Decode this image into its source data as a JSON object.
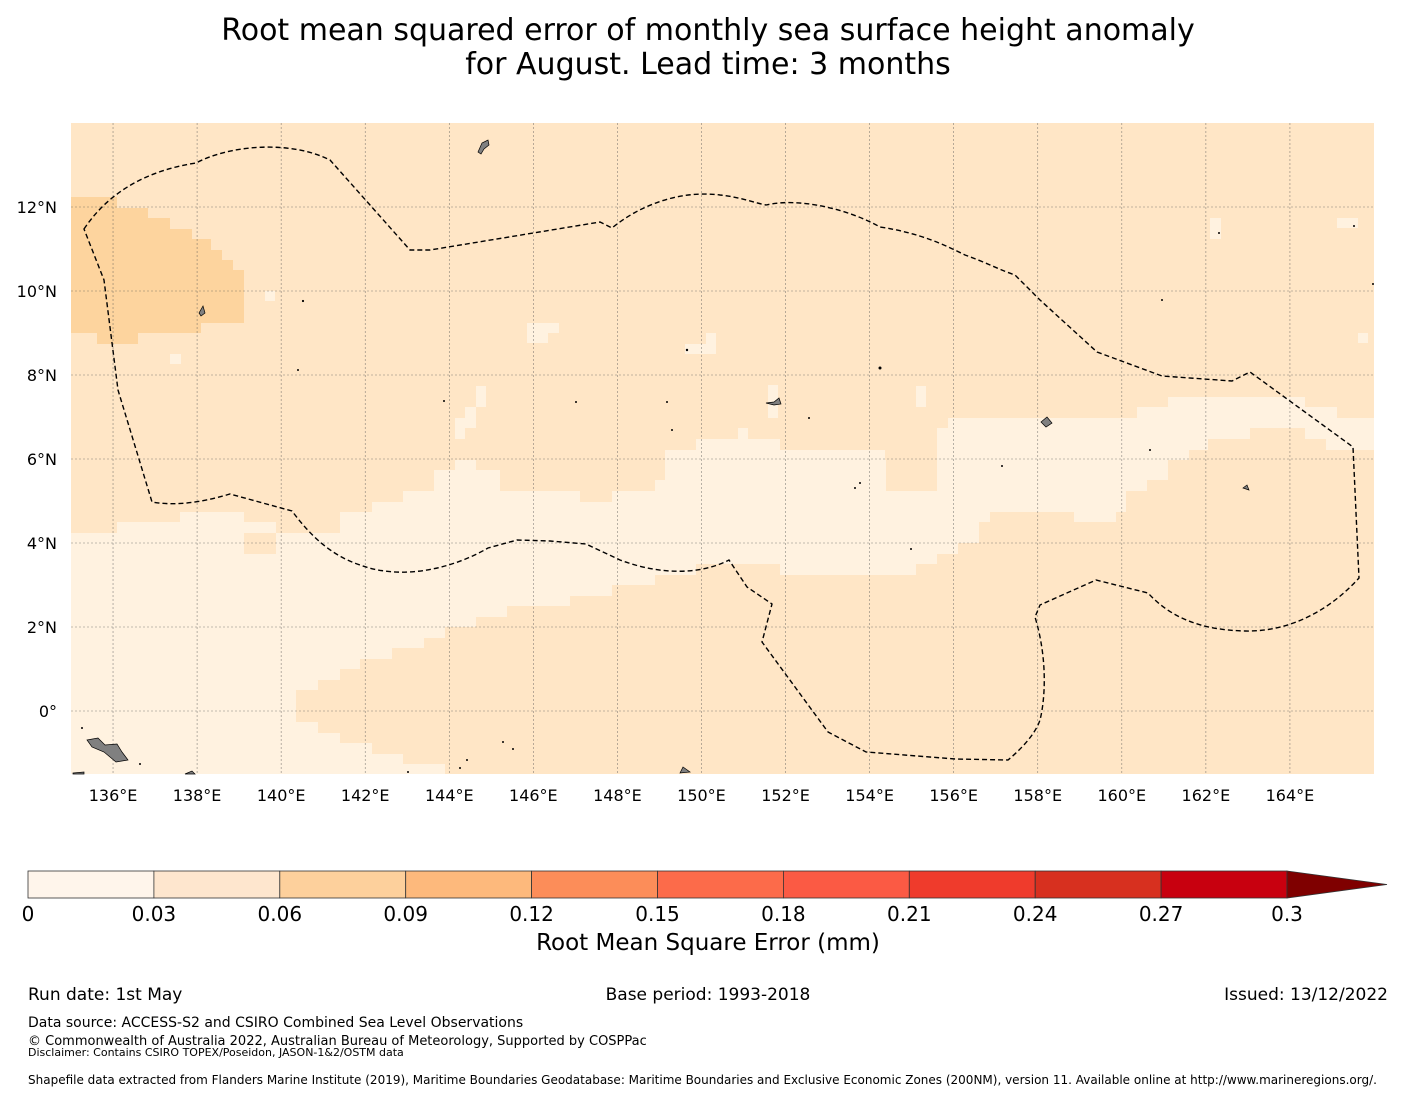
{
  "title": {
    "line1": "Root mean squared error of monthly sea surface height anomaly",
    "line2": "for August. Lead time: 3 months"
  },
  "map": {
    "lon_range": [
      135,
      166
    ],
    "lat_range": [
      -1.5,
      14
    ],
    "lon_ticks": [
      "136°E",
      "138°E",
      "140°E",
      "142°E",
      "144°E",
      "146°E",
      "148°E",
      "150°E",
      "152°E",
      "154°E",
      "156°E",
      "158°E",
      "160°E",
      "162°E",
      "164°E"
    ],
    "lat_ticks": [
      "0°",
      "2°N",
      "4°N",
      "6°N",
      "8°N",
      "10°N",
      "12°N"
    ],
    "field_colors": {
      "low": "#fff2e0",
      "mid": "#ffe6c6",
      "high": "#fdd49e"
    },
    "land_color": "#808080",
    "boundary_style": "dashed-black"
  },
  "colorbar": {
    "ticks": [
      "0",
      "0.03",
      "0.06",
      "0.09",
      "0.12",
      "0.15",
      "0.18",
      "0.21",
      "0.24",
      "0.27",
      "0.3"
    ],
    "colors": [
      "#fff5eb",
      "#fee6ce",
      "#fdd09c",
      "#fdb97c",
      "#fc8d59",
      "#fc6b4a",
      "#fb5a44",
      "#ef3b2c",
      "#d7301f",
      "#c8000f",
      "#b10000"
    ],
    "extend_color": "#7f0000",
    "label": "Root Mean Square Error (mm)"
  },
  "footer": {
    "run_date": "Run date: 1st May",
    "base_period": "Base period: 1993-2018",
    "issued": "Issued: 13/12/2022",
    "data_source": "Data source: ACCESS-S2 and CSIRO Combined Sea Level Observations",
    "copyright": "© Commonwealth of Australia 2022, Australian Bureau of Meteorology, Supported by COSPPac",
    "disclaimer": "Disclaimer: Contains CSIRO TOPEX/Poseidon, JASON-1&2/OSTM data",
    "shapefile": "Shapefile data extracted from Flanders Marine Institute (2019), Maritime Boundaries Geodatabase: Maritime Boundaries and Exclusive Economic Zones (200NM), version 11. Available online at http://www.marineregions.org/."
  }
}
